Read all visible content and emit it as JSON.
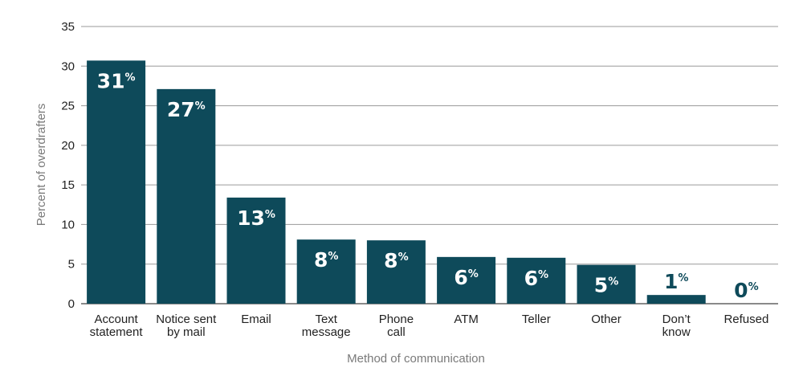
{
  "chart_data": {
    "type": "bar",
    "title": "",
    "xlabel": "Method of communication",
    "ylabel": "Percent of overdrafters",
    "ylim": [
      0,
      35
    ],
    "yticks": [
      0,
      5,
      10,
      15,
      20,
      25,
      30,
      35
    ],
    "grid": true,
    "categories": [
      [
        "Account",
        "statement"
      ],
      [
        "Notice sent",
        "by mail"
      ],
      [
        "Email"
      ],
      [
        "Text",
        "message"
      ],
      [
        "Phone",
        "call"
      ],
      [
        "ATM"
      ],
      [
        "Teller"
      ],
      [
        "Other"
      ],
      [
        "Don’t",
        "know"
      ],
      [
        "Refused"
      ]
    ],
    "values": [
      30.7,
      27.1,
      13.4,
      8.1,
      8.0,
      5.9,
      5.8,
      4.9,
      1.1,
      0
    ],
    "data_labels": [
      "31",
      "27",
      "13",
      "8",
      "8",
      "6",
      "6",
      "5",
      "1",
      "0"
    ],
    "data_label_suffix": "%",
    "colors": {
      "bar": "#0e4a5a",
      "gridline": "#9a9a9a"
    }
  }
}
